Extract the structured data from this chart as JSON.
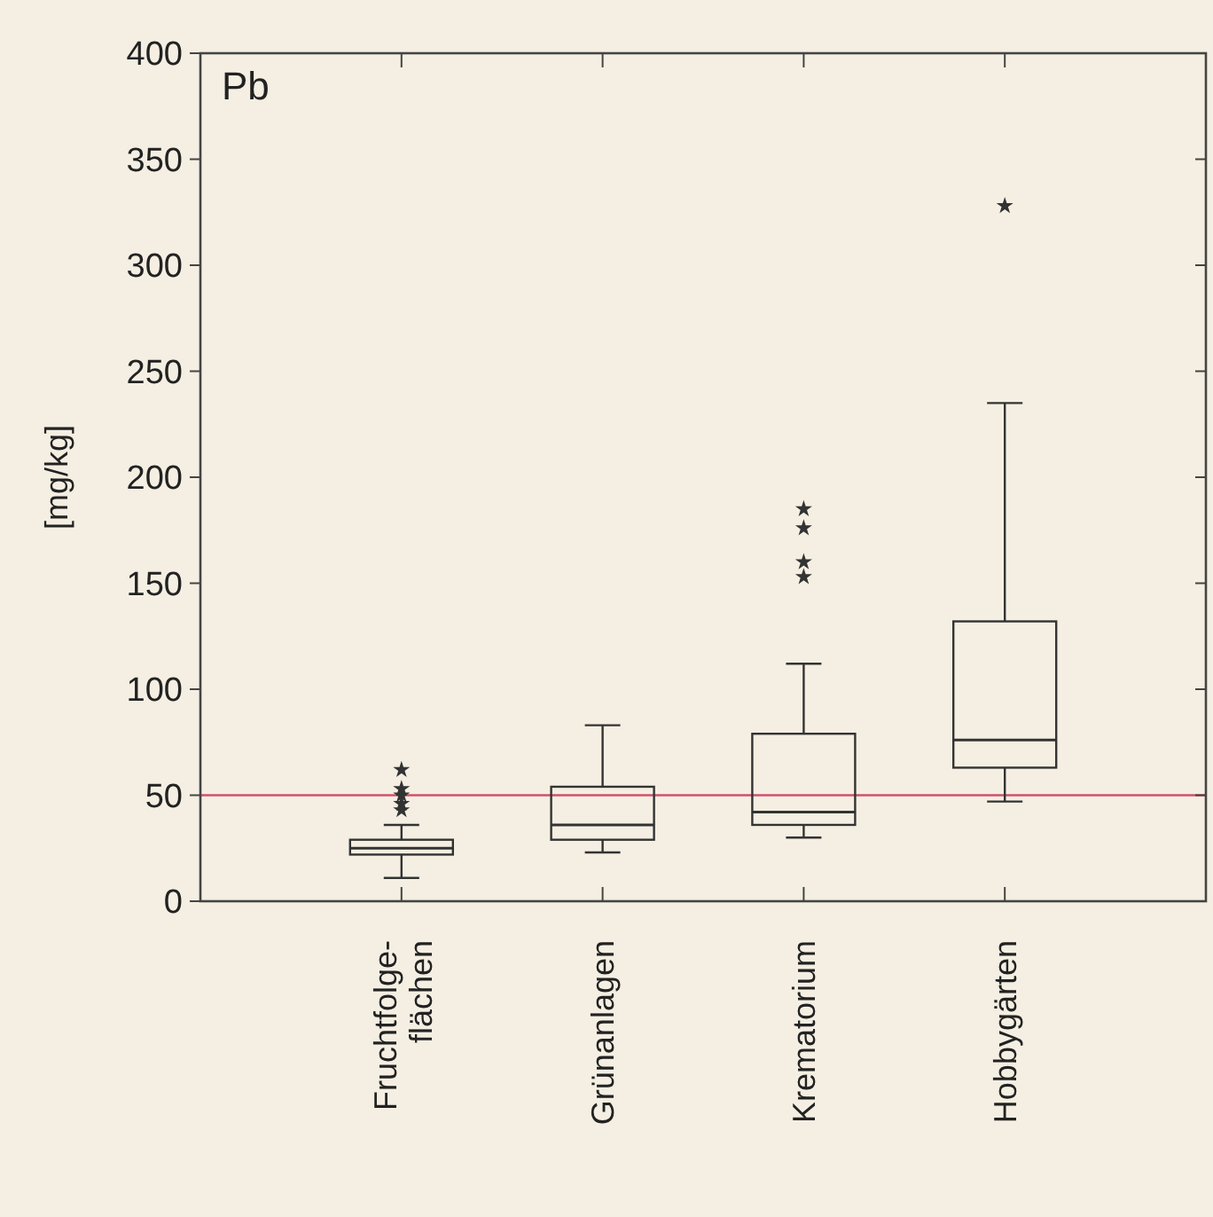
{
  "chart_data": {
    "type": "box",
    "title": "Pb",
    "ylabel": "[mg/kg]",
    "categories": [
      "Fruchtfolge-\nflächen",
      "Grünanlagen",
      "Krematorium",
      "Hobbygärten"
    ],
    "boxes": [
      {
        "low": 11,
        "q1": 22,
        "median": 25,
        "q3": 29,
        "high": 36,
        "outliers": [
          43,
          46,
          50,
          53,
          62
        ]
      },
      {
        "low": 23,
        "q1": 29,
        "median": 36,
        "q3": 54,
        "high": 83
      },
      {
        "low": 30,
        "q1": 36,
        "median": 42,
        "q3": 79,
        "high": 112,
        "outliers": [
          153,
          160,
          176,
          185
        ]
      },
      {
        "low": 47,
        "q1": 63,
        "median": 76,
        "q3": 132,
        "high": 235,
        "outliers": [
          328
        ]
      }
    ],
    "color": "#333333",
    "marker": "star",
    "ylim": [
      0,
      400
    ],
    "yticks": [
      0,
      50,
      100,
      150,
      200,
      250,
      300,
      350,
      400
    ],
    "ref_lines": [
      {
        "axis": "y",
        "value": 50,
        "color": "#d0506e"
      }
    ]
  }
}
